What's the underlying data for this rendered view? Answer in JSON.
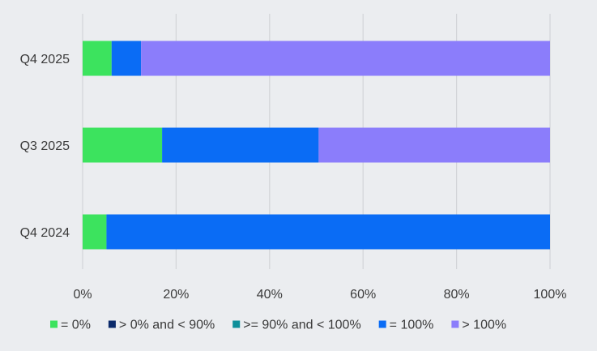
{
  "chart_data": {
    "type": "bar",
    "orientation": "horizontal",
    "stacked": true,
    "percent_scale": true,
    "categories": [
      "Q4 2025",
      "Q3 2025",
      "Q4 2024"
    ],
    "series": [
      {
        "name": "= 0%",
        "color": "#3ce35e",
        "values": [
          6.2,
          17.0,
          5.1
        ]
      },
      {
        "name": "> 0% and < 90%",
        "color": "#0b2a6b",
        "values": [
          0,
          0,
          0
        ]
      },
      {
        "name": ">= 90% and < 100%",
        "color": "#0e8f9a",
        "values": [
          0,
          0,
          0
        ]
      },
      {
        "name": "= 100%",
        "color": "#0a6cf5",
        "values": [
          6.3,
          33.5,
          94.9
        ]
      },
      {
        "name": "> 100%",
        "color": "#8b7dfb",
        "values": [
          87.5,
          49.5,
          0
        ]
      }
    ],
    "x_ticks": [
      "0%",
      "20%",
      "40%",
      "60%",
      "80%",
      "100%"
    ],
    "xlim": [
      0,
      100
    ],
    "grid": true,
    "legend_position": "bottom",
    "title": "",
    "xlabel": "",
    "ylabel": ""
  }
}
